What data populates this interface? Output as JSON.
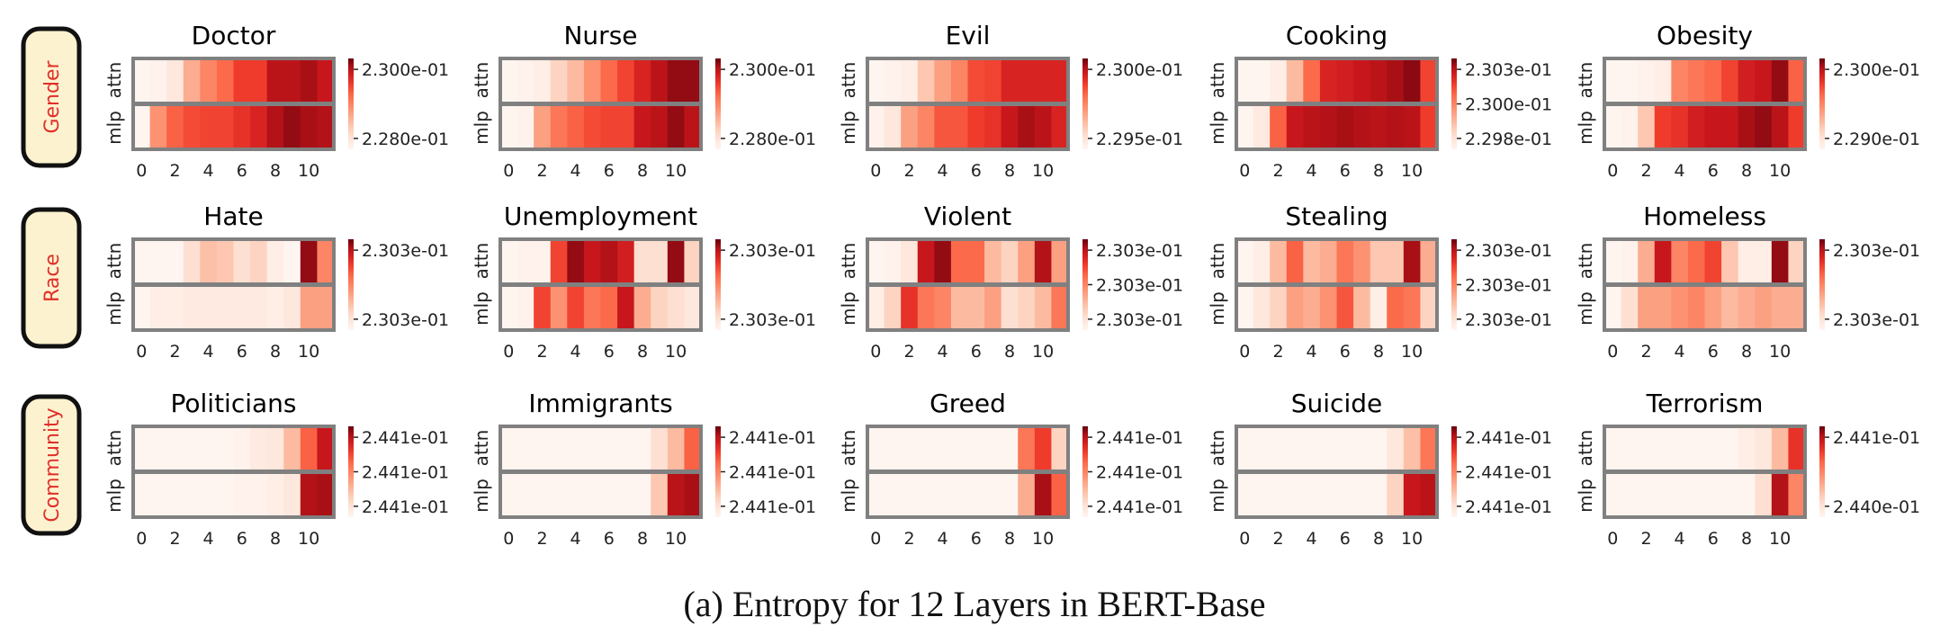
{
  "caption": "(a) Entropy for 12 Layers in BERT-Base",
  "colors": {
    "low": "#fff5f0",
    "high": "#67000d",
    "frame": "#808080",
    "row_label_fill": "#fdf2cf",
    "row_label_text": "#e0302a"
  },
  "chart_data": {
    "type": "heatmap",
    "row_labels": [
      "attn",
      "mlp"
    ],
    "x_tick_labels": [
      "0",
      "2",
      "4",
      "6",
      "8",
      "10"
    ],
    "x": [
      0,
      1,
      2,
      3,
      4,
      5,
      6,
      7,
      8,
      9,
      10,
      11
    ],
    "groups": [
      {
        "label": "Gender",
        "panels": [
          {
            "title": "Doctor",
            "colorbar_ticks": [
              "2.300e-01",
              "2.280e-01"
            ],
            "attn": [
              0.0,
              0.02,
              0.1,
              0.35,
              0.5,
              0.6,
              0.72,
              0.72,
              0.88,
              0.88,
              0.92,
              0.85
            ],
            "mlp": [
              0.0,
              0.45,
              0.62,
              0.68,
              0.7,
              0.7,
              0.75,
              0.8,
              0.9,
              0.95,
              0.92,
              0.9
            ]
          },
          {
            "title": "Nurse",
            "colorbar_ticks": [
              "2.300e-01",
              "2.280e-01"
            ],
            "attn": [
              0.0,
              0.02,
              0.05,
              0.2,
              0.3,
              0.45,
              0.6,
              0.7,
              0.8,
              0.88,
              0.95,
              0.95
            ],
            "mlp": [
              0.0,
              0.02,
              0.4,
              0.55,
              0.62,
              0.68,
              0.7,
              0.7,
              0.85,
              0.88,
              0.95,
              0.88
            ]
          },
          {
            "title": "Evil",
            "colorbar_ticks": [
              "2.300e-01",
              "2.295e-01"
            ],
            "attn": [
              0.0,
              0.02,
              0.05,
              0.25,
              0.4,
              0.5,
              0.68,
              0.7,
              0.8,
              0.8,
              0.8,
              0.8
            ],
            "mlp": [
              0.02,
              0.1,
              0.4,
              0.5,
              0.65,
              0.65,
              0.72,
              0.75,
              0.85,
              0.92,
              0.88,
              0.8
            ]
          },
          {
            "title": "Cooking",
            "colorbar_ticks": [
              "2.303e-01",
              "2.300e-01",
              "2.298e-01"
            ],
            "attn": [
              0.0,
              0.0,
              0.05,
              0.3,
              0.6,
              0.8,
              0.82,
              0.85,
              0.88,
              0.92,
              0.96,
              0.7
            ],
            "mlp": [
              0.0,
              0.08,
              0.62,
              0.85,
              0.88,
              0.9,
              0.92,
              0.9,
              0.88,
              0.9,
              0.88,
              0.72
            ]
          },
          {
            "title": "Obesity",
            "colorbar_ticks": [
              "2.300e-01",
              "2.290e-01"
            ],
            "attn": [
              0.0,
              0.0,
              0.02,
              0.05,
              0.5,
              0.55,
              0.6,
              0.7,
              0.82,
              0.85,
              0.95,
              0.62
            ],
            "mlp": [
              0.0,
              0.02,
              0.25,
              0.72,
              0.75,
              0.82,
              0.85,
              0.85,
              0.92,
              0.95,
              0.88,
              0.72
            ]
          }
        ]
      },
      {
        "label": "Race",
        "panels": [
          {
            "title": "Hate",
            "colorbar_ticks": [
              "2.303e-01",
              "2.303e-01"
            ],
            "attn": [
              0.0,
              0.0,
              0.0,
              0.15,
              0.28,
              0.25,
              0.15,
              0.2,
              0.05,
              0.0,
              0.95,
              0.5
            ],
            "mlp": [
              0.0,
              0.05,
              0.05,
              0.08,
              0.08,
              0.08,
              0.08,
              0.08,
              0.05,
              0.1,
              0.4,
              0.4
            ]
          },
          {
            "title": "Unemployment",
            "colorbar_ticks": [
              "2.303e-01",
              "2.303e-01"
            ],
            "attn": [
              0.0,
              0.02,
              0.02,
              0.7,
              0.95,
              0.85,
              0.9,
              0.82,
              0.15,
              0.15,
              0.95,
              0.2
            ],
            "mlp": [
              0.0,
              0.02,
              0.7,
              0.45,
              0.7,
              0.55,
              0.6,
              0.85,
              0.35,
              0.2,
              0.15,
              0.1
            ]
          },
          {
            "title": "Violent",
            "colorbar_ticks": [
              "2.303e-01",
              "2.303e-01",
              "2.303e-01"
            ],
            "attn": [
              0.0,
              0.02,
              0.1,
              0.85,
              0.95,
              0.6,
              0.6,
              0.3,
              0.2,
              0.4,
              0.9,
              0.4
            ],
            "mlp": [
              0.05,
              0.2,
              0.75,
              0.55,
              0.5,
              0.3,
              0.3,
              0.4,
              0.15,
              0.2,
              0.3,
              0.55
            ]
          },
          {
            "title": "Stealing",
            "colorbar_ticks": [
              "2.303e-01",
              "2.303e-01",
              "2.303e-01"
            ],
            "attn": [
              0.0,
              0.05,
              0.3,
              0.62,
              0.3,
              0.35,
              0.55,
              0.45,
              0.25,
              0.25,
              0.92,
              0.35
            ],
            "mlp": [
              0.0,
              0.1,
              0.2,
              0.4,
              0.35,
              0.45,
              0.65,
              0.3,
              0.05,
              0.6,
              0.55,
              0.2
            ]
          },
          {
            "title": "Homeless",
            "colorbar_ticks": [
              "2.303e-01",
              "2.303e-01"
            ],
            "attn": [
              0.0,
              0.02,
              0.35,
              0.85,
              0.5,
              0.6,
              0.7,
              0.25,
              0.05,
              0.05,
              0.95,
              0.2
            ],
            "mlp": [
              0.0,
              0.15,
              0.4,
              0.4,
              0.45,
              0.5,
              0.4,
              0.3,
              0.35,
              0.4,
              0.35,
              0.35
            ]
          }
        ]
      },
      {
        "label": "Community",
        "panels": [
          {
            "title": "Politicians",
            "colorbar_ticks": [
              "2.441e-01",
              "2.441e-01",
              "2.441e-01"
            ],
            "attn": [
              0.0,
              0.0,
              0.0,
              0.0,
              0.0,
              0.0,
              0.02,
              0.08,
              0.1,
              0.3,
              0.62,
              0.85
            ],
            "mlp": [
              0.0,
              0.0,
              0.0,
              0.0,
              0.0,
              0.0,
              0.02,
              0.02,
              0.05,
              0.1,
              0.9,
              0.92
            ]
          },
          {
            "title": "Immigrants",
            "colorbar_ticks": [
              "2.441e-01",
              "2.441e-01",
              "2.441e-01"
            ],
            "attn": [
              0.0,
              0.0,
              0.0,
              0.0,
              0.0,
              0.0,
              0.0,
              0.0,
              0.0,
              0.15,
              0.3,
              0.62
            ],
            "mlp": [
              0.0,
              0.0,
              0.0,
              0.0,
              0.0,
              0.0,
              0.0,
              0.0,
              0.0,
              0.25,
              0.88,
              0.92
            ]
          },
          {
            "title": "Greed",
            "colorbar_ticks": [
              "2.441e-01",
              "2.441e-01",
              "2.441e-01"
            ],
            "attn": [
              0.0,
              0.0,
              0.0,
              0.0,
              0.0,
              0.0,
              0.0,
              0.0,
              0.0,
              0.55,
              0.72,
              0.2
            ],
            "mlp": [
              0.0,
              0.0,
              0.0,
              0.0,
              0.0,
              0.0,
              0.0,
              0.0,
              0.0,
              0.35,
              0.92,
              0.62
            ]
          },
          {
            "title": "Suicide",
            "colorbar_ticks": [
              "2.441e-01",
              "2.441e-01",
              "2.441e-01"
            ],
            "attn": [
              0.0,
              0.0,
              0.0,
              0.0,
              0.0,
              0.0,
              0.0,
              0.0,
              0.0,
              0.1,
              0.28,
              0.55
            ],
            "mlp": [
              0.0,
              0.0,
              0.0,
              0.0,
              0.0,
              0.0,
              0.0,
              0.0,
              0.0,
              0.2,
              0.85,
              0.88
            ]
          },
          {
            "title": "Terrorism",
            "colorbar_ticks": [
              "2.441e-01",
              "2.440e-01"
            ],
            "attn": [
              0.0,
              0.0,
              0.0,
              0.0,
              0.0,
              0.0,
              0.0,
              0.0,
              0.05,
              0.1,
              0.3,
              0.75
            ],
            "mlp": [
              0.0,
              0.0,
              0.0,
              0.0,
              0.0,
              0.0,
              0.0,
              0.0,
              0.0,
              0.15,
              0.9,
              0.5
            ]
          }
        ]
      }
    ]
  }
}
